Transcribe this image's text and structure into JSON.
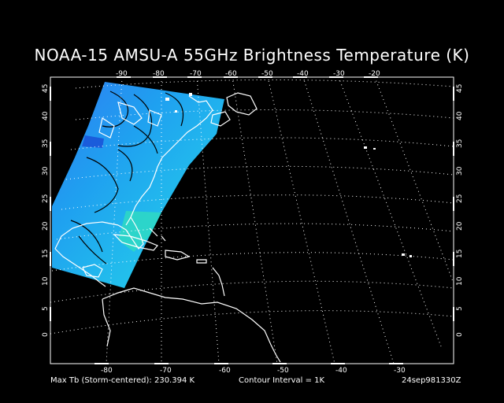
{
  "title": "NOAA-15 AMSU-A 55GHz Brightness Temperature (K)",
  "axes": {
    "top_lon_labels": [
      "-90",
      "-80",
      "-70",
      "-60",
      "-50",
      "-40",
      "-30",
      "-20"
    ],
    "bottom_lon_labels": [
      "-80",
      "-70",
      "-60",
      "-50",
      "-40",
      "-30"
    ],
    "lat_labels": [
      "45",
      "40",
      "35",
      "30",
      "25",
      "20",
      "15",
      "10",
      "5",
      "0"
    ]
  },
  "footer": {
    "max_tb": "Max Tb (Storm-centered):  230.394 K",
    "contour": "Contour Interval = 1K",
    "timestamp": "24sep981330Z"
  },
  "colors": {
    "background": "#000000",
    "swath_low": "#1f6cf0",
    "swath_mid": "#22b6ee",
    "swath_high": "#2ee0c8",
    "coast": "#ffffff",
    "contour": "#000000",
    "grid": "#ffffff"
  }
}
